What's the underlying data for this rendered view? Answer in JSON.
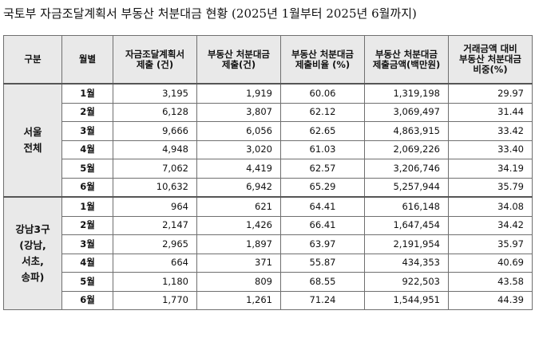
{
  "title": "국토부 자금조달계획서 부동산 처분대금 현황 (2025년 1월부터 2025년 6월까지)",
  "headers": {
    "region": "구분",
    "month": "월별",
    "col1": [
      "자금조달계획서",
      "제출 (건)"
    ],
    "col2": [
      "부동산 처분대금",
      "제출(건)"
    ],
    "col3": [
      "부동산 처분대금",
      "제출비율 (%)"
    ],
    "col4": [
      "부동산 처분대금",
      "제출금액(백만원)"
    ],
    "col5": [
      "거래금액 대비",
      "부동산 처분대금",
      "비중(%)"
    ]
  },
  "groups": [
    {
      "label_lines": [
        "서울",
        "전체"
      ],
      "rows": [
        {
          "month": "1월",
          "plans": "3,195",
          "disposals": "1,919",
          "ratio": "60.06",
          "amount": "1,319,198",
          "share": "29.97"
        },
        {
          "month": "2월",
          "plans": "6,128",
          "disposals": "3,807",
          "ratio": "62.12",
          "amount": "3,069,497",
          "share": "31.44"
        },
        {
          "month": "3월",
          "plans": "9,666",
          "disposals": "6,056",
          "ratio": "62.65",
          "amount": "4,863,915",
          "share": "33.42"
        },
        {
          "month": "4월",
          "plans": "4,948",
          "disposals": "3,020",
          "ratio": "61.03",
          "amount": "2,069,226",
          "share": "33.40"
        },
        {
          "month": "5월",
          "plans": "7,062",
          "disposals": "4,419",
          "ratio": "62.57",
          "amount": "3,206,746",
          "share": "34.19"
        },
        {
          "month": "6월",
          "plans": "10,632",
          "disposals": "6,942",
          "ratio": "65.29",
          "amount": "5,257,944",
          "share": "35.79"
        }
      ]
    },
    {
      "label_lines": [
        "강남3구",
        "(강남,",
        "서초,",
        "송파)"
      ],
      "rows": [
        {
          "month": "1월",
          "plans": "964",
          "disposals": "621",
          "ratio": "64.41",
          "amount": "616,148",
          "share": "34.08"
        },
        {
          "month": "2월",
          "plans": "2,147",
          "disposals": "1,426",
          "ratio": "66.41",
          "amount": "1,647,454",
          "share": "34.42"
        },
        {
          "month": "3월",
          "plans": "2,965",
          "disposals": "1,897",
          "ratio": "63.97",
          "amount": "2,191,954",
          "share": "35.97"
        },
        {
          "month": "4월",
          "plans": "664",
          "disposals": "371",
          "ratio": "55.87",
          "amount": "434,353",
          "share": "40.69"
        },
        {
          "month": "5월",
          "plans": "1,180",
          "disposals": "809",
          "ratio": "68.55",
          "amount": "922,503",
          "share": "43.58"
        },
        {
          "month": "6월",
          "plans": "1,770",
          "disposals": "1,261",
          "ratio": "71.24",
          "amount": "1,544,951",
          "share": "44.39"
        }
      ]
    }
  ]
}
